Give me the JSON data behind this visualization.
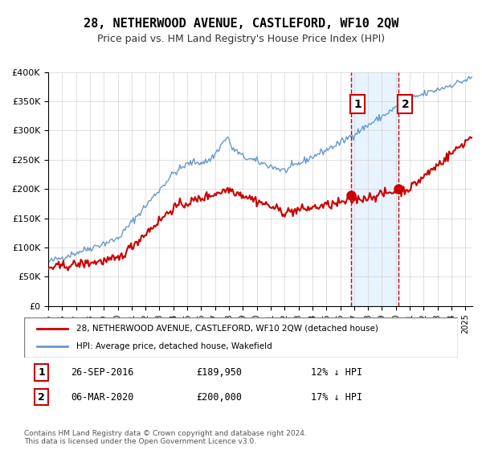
{
  "title": "28, NETHERWOOD AVENUE, CASTLEFORD, WF10 2QW",
  "subtitle": "Price paid vs. HM Land Registry's House Price Index (HPI)",
  "legend_line1": "28, NETHERWOOD AVENUE, CASTLEFORD, WF10 2QW (detached house)",
  "legend_line2": "HPI: Average price, detached house, Wakefield",
  "annotation1_label": "1",
  "annotation1_date": "26-SEP-2016",
  "annotation1_price": "£189,950",
  "annotation1_note": "12% ↓ HPI",
  "annotation2_label": "2",
  "annotation2_date": "06-MAR-2020",
  "annotation2_price": "£200,000",
  "annotation2_note": "17% ↓ HPI",
  "footer": "Contains HM Land Registry data © Crown copyright and database right 2024.\nThis data is licensed under the Open Government Licence v3.0.",
  "red_color": "#cc0000",
  "blue_color": "#6699cc",
  "blue_fill_color": "#ddeeff",
  "marker1_x": 2016.75,
  "marker1_y": 189950,
  "marker2_x": 2020.17,
  "marker2_y": 200000,
  "vline1_x": 2016.75,
  "vline2_x": 2020.17,
  "ylim": [
    0,
    400000
  ],
  "xlim": [
    1995,
    2025.5
  ]
}
